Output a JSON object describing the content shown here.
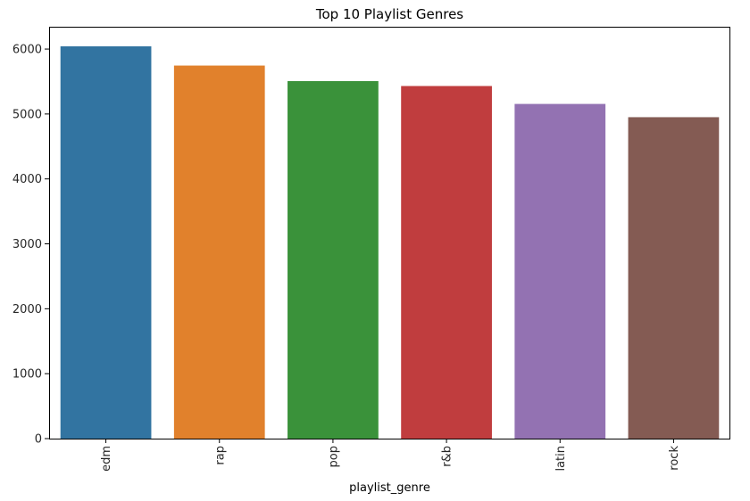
{
  "chart_data": {
    "type": "bar",
    "title": "Top 10 Playlist Genres",
    "xlabel": "playlist_genre",
    "ylabel": "",
    "categories": [
      "edm",
      "rap",
      "pop",
      "r&b",
      "latin",
      "rock"
    ],
    "values": [
      6043,
      5746,
      5507,
      5431,
      5155,
      4951
    ],
    "colors": [
      "#3274a1",
      "#e1812c",
      "#3a923a",
      "#c03d3e",
      "#9372b2",
      "#845b53"
    ],
    "ylim": [
      0,
      6344
    ],
    "yticks": [
      0,
      1000,
      2000,
      3000,
      4000,
      5000,
      6000
    ],
    "grid": false,
    "legend": "none",
    "xtick_rotation": 90
  }
}
